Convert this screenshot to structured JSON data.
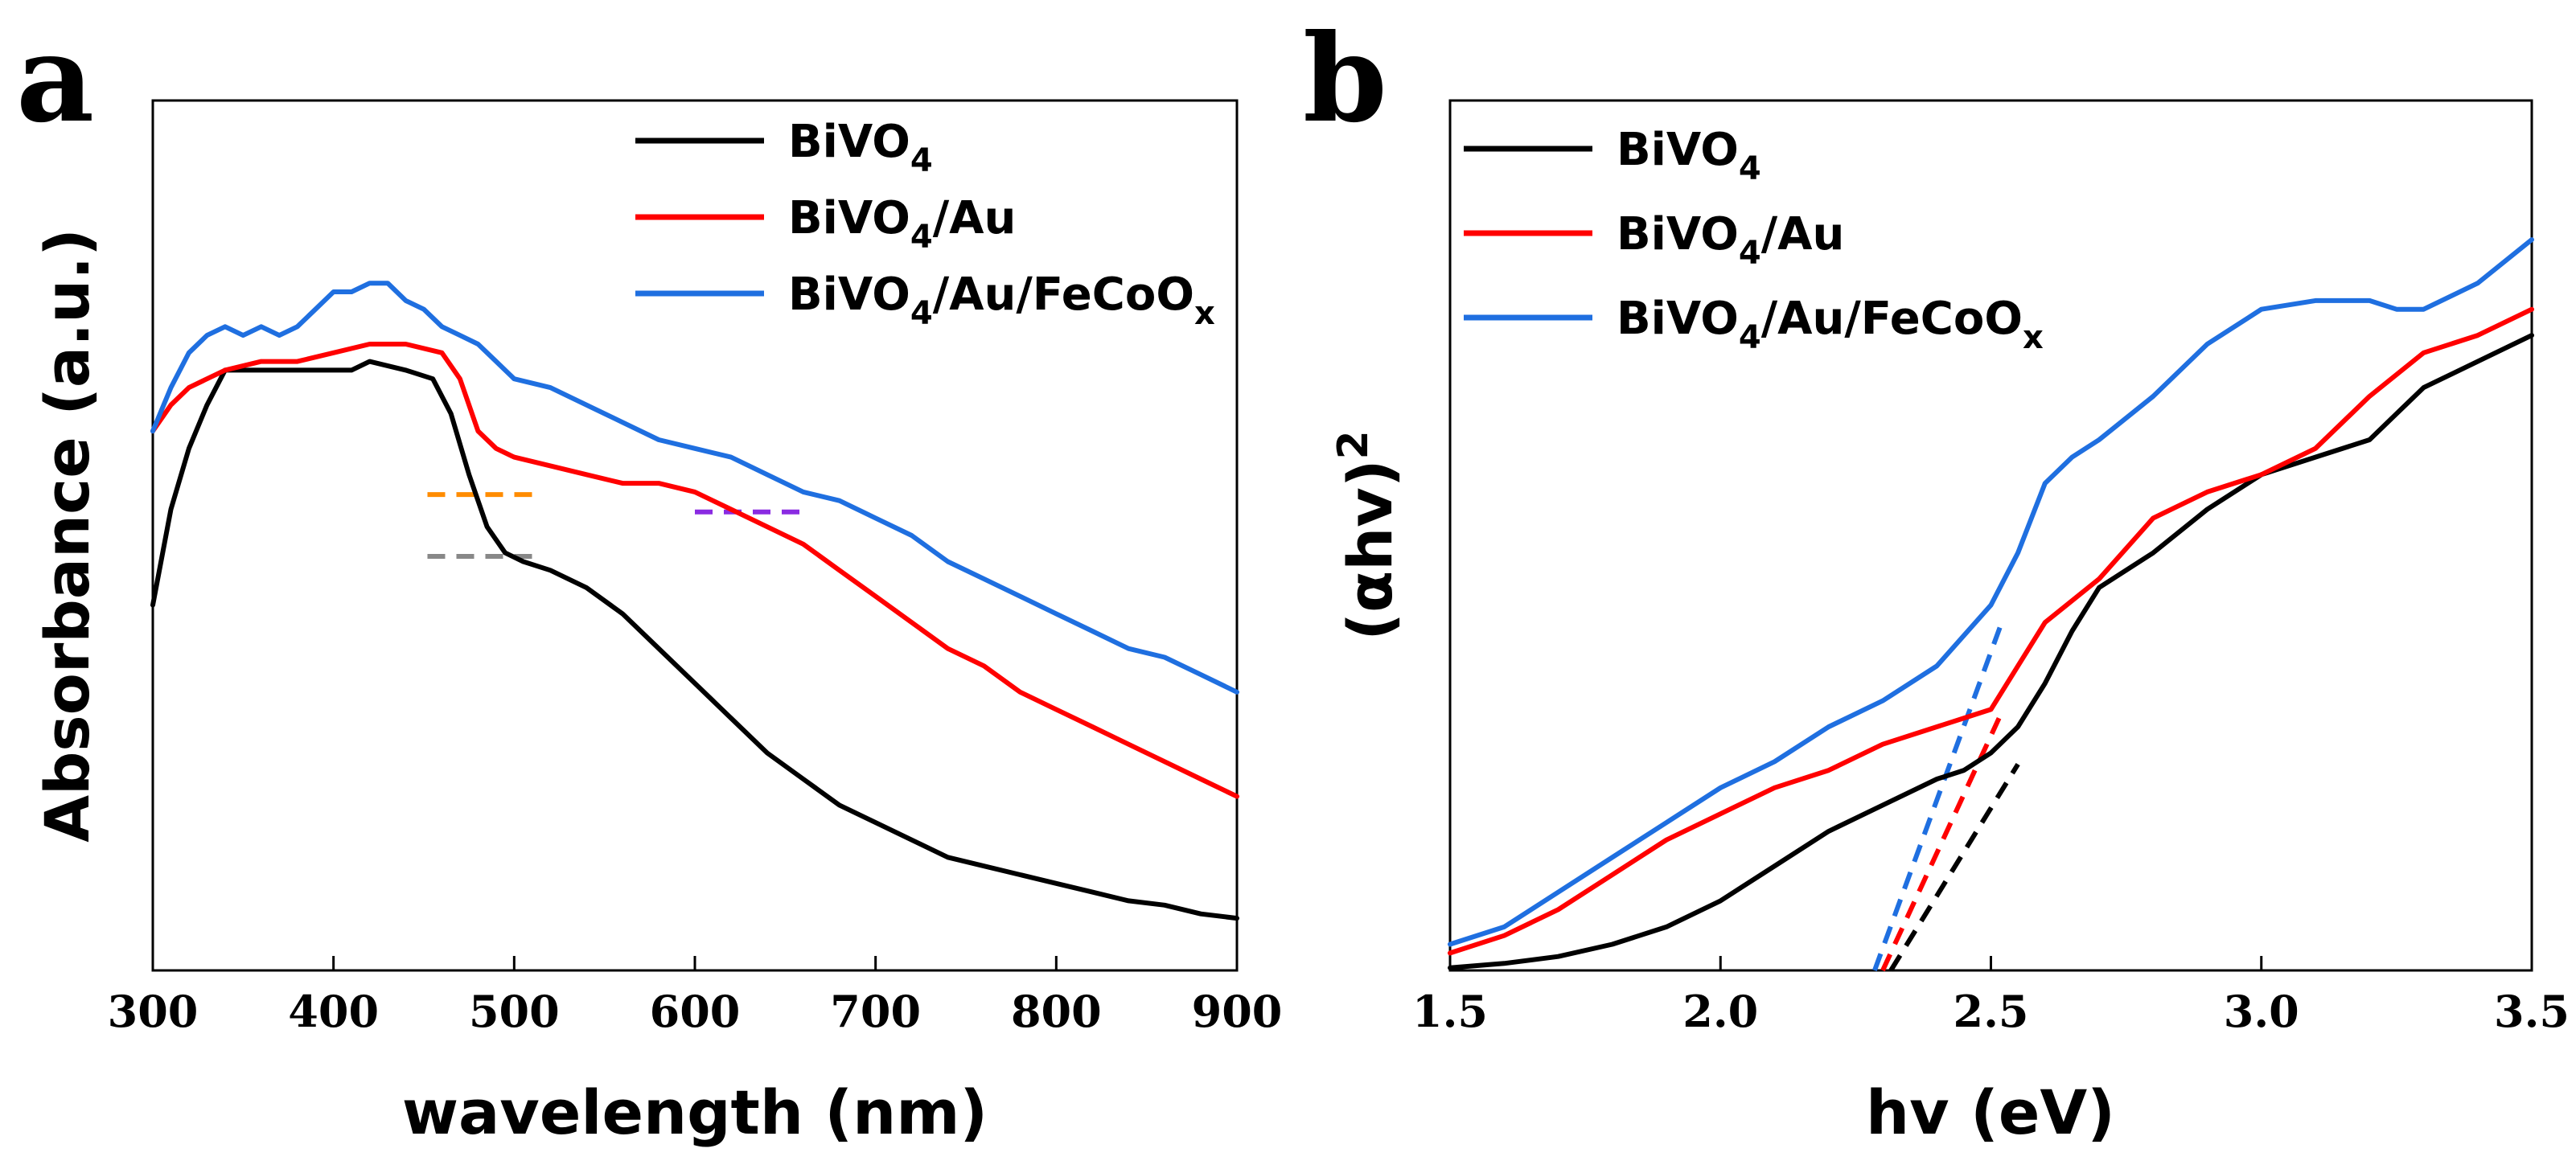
{
  "chart_data": [
    {
      "type": "line",
      "panel_label": "a",
      "xlabel": "wavelength (nm)",
      "ylabel": "Absorbance (a.u.)",
      "xlim": [
        300,
        900
      ],
      "ylim": [
        0,
        1
      ],
      "xticks": [
        300,
        400,
        500,
        600,
        700,
        800,
        900
      ],
      "y_ticks_shown": false,
      "legend_position": "top-right",
      "series": [
        {
          "name": "BiVO",
          "sub": "4",
          "suffix": "",
          "suffix_sub": "",
          "color": "#000000",
          "x": [
            300,
            310,
            320,
            330,
            340,
            350,
            370,
            390,
            400,
            410,
            420,
            440,
            455,
            465,
            475,
            485,
            495,
            505,
            520,
            540,
            560,
            580,
            600,
            620,
            640,
            660,
            680,
            700,
            720,
            740,
            760,
            780,
            800,
            820,
            840,
            860,
            880,
            900
          ],
          "y": [
            0.42,
            0.53,
            0.6,
            0.65,
            0.69,
            0.69,
            0.69,
            0.69,
            0.69,
            0.69,
            0.7,
            0.69,
            0.68,
            0.64,
            0.57,
            0.51,
            0.48,
            0.47,
            0.46,
            0.44,
            0.41,
            0.37,
            0.33,
            0.29,
            0.25,
            0.22,
            0.19,
            0.17,
            0.15,
            0.13,
            0.12,
            0.11,
            0.1,
            0.09,
            0.08,
            0.075,
            0.065,
            0.06
          ]
        },
        {
          "name": "BiVO",
          "sub": "4",
          "suffix": "/Au",
          "suffix_sub": "",
          "color": "#ff0000",
          "x": [
            300,
            310,
            320,
            330,
            340,
            360,
            380,
            400,
            420,
            440,
            460,
            470,
            480,
            490,
            500,
            520,
            540,
            560,
            580,
            600,
            620,
            640,
            660,
            680,
            700,
            720,
            740,
            760,
            780,
            800,
            820,
            840,
            860,
            880,
            900
          ],
          "y": [
            0.62,
            0.65,
            0.67,
            0.68,
            0.69,
            0.7,
            0.7,
            0.71,
            0.72,
            0.72,
            0.71,
            0.68,
            0.62,
            0.6,
            0.59,
            0.58,
            0.57,
            0.56,
            0.56,
            0.55,
            0.53,
            0.51,
            0.49,
            0.46,
            0.43,
            0.4,
            0.37,
            0.35,
            0.32,
            0.3,
            0.28,
            0.26,
            0.24,
            0.22,
            0.2
          ]
        },
        {
          "name": "BiVO",
          "sub": "4",
          "suffix": "/Au/FeCoO",
          "suffix_sub": "x",
          "color": "#1f6fe0",
          "x": [
            300,
            310,
            320,
            330,
            340,
            350,
            360,
            370,
            380,
            390,
            400,
            410,
            420,
            430,
            440,
            450,
            460,
            470,
            480,
            490,
            500,
            520,
            540,
            560,
            580,
            600,
            620,
            640,
            660,
            680,
            700,
            720,
            740,
            760,
            780,
            800,
            820,
            840,
            860,
            880,
            900
          ],
          "y": [
            0.62,
            0.67,
            0.71,
            0.73,
            0.74,
            0.73,
            0.74,
            0.73,
            0.74,
            0.76,
            0.78,
            0.78,
            0.79,
            0.79,
            0.77,
            0.76,
            0.74,
            0.73,
            0.72,
            0.7,
            0.68,
            0.67,
            0.65,
            0.63,
            0.61,
            0.6,
            0.59,
            0.57,
            0.55,
            0.54,
            0.52,
            0.5,
            0.47,
            0.45,
            0.43,
            0.41,
            0.39,
            0.37,
            0.36,
            0.34,
            0.32
          ]
        }
      ],
      "guides": [
        {
          "x": [
            452,
            510
          ],
          "y": [
            0.547,
            0.547
          ],
          "color": "#ff8c00"
        },
        {
          "x": [
            452,
            510
          ],
          "y": [
            0.476,
            0.476
          ],
          "color": "#888888"
        },
        {
          "x": [
            600,
            660
          ],
          "y": [
            0.527,
            0.527
          ],
          "color": "#8a2be2"
        }
      ]
    },
    {
      "type": "line",
      "panel_label": "b",
      "xlabel": "hv (eV)",
      "ylabel": "(αhv)",
      "ylabel_sup": "2",
      "xlim": [
        1.5,
        3.5
      ],
      "ylim": [
        0,
        1
      ],
      "xticks": [
        "1.5",
        "2.0",
        "2.5",
        "3.0",
        "3.5"
      ],
      "y_ticks_shown": false,
      "legend_position": "top-left",
      "series": [
        {
          "name": "BiVO",
          "sub": "4",
          "suffix": "",
          "suffix_sub": "",
          "color": "#000000",
          "x": [
            1.5,
            1.6,
            1.7,
            1.8,
            1.9,
            2.0,
            2.1,
            2.2,
            2.3,
            2.4,
            2.45,
            2.5,
            2.55,
            2.6,
            2.65,
            2.7,
            2.8,
            2.9,
            3.0,
            3.1,
            3.2,
            3.25,
            3.3,
            3.4,
            3.5
          ],
          "y": [
            0.003,
            0.008,
            0.016,
            0.03,
            0.05,
            0.08,
            0.12,
            0.16,
            0.19,
            0.22,
            0.23,
            0.25,
            0.28,
            0.33,
            0.39,
            0.44,
            0.48,
            0.53,
            0.57,
            0.59,
            0.61,
            0.64,
            0.67,
            0.7,
            0.73
          ]
        },
        {
          "name": "BiVO",
          "sub": "4",
          "suffix": "/Au",
          "suffix_sub": "",
          "color": "#ff0000",
          "x": [
            1.5,
            1.6,
            1.7,
            1.8,
            1.9,
            2.0,
            2.1,
            2.2,
            2.3,
            2.4,
            2.5,
            2.55,
            2.6,
            2.7,
            2.8,
            2.9,
            3.0,
            3.1,
            3.2,
            3.3,
            3.4,
            3.5
          ],
          "y": [
            0.02,
            0.04,
            0.07,
            0.11,
            0.15,
            0.18,
            0.21,
            0.23,
            0.26,
            0.28,
            0.3,
            0.35,
            0.4,
            0.45,
            0.52,
            0.55,
            0.57,
            0.6,
            0.66,
            0.71,
            0.73,
            0.76
          ]
        },
        {
          "name": "BiVO",
          "sub": "4",
          "suffix": "/Au/FeCoO",
          "suffix_sub": "x",
          "color": "#1f6fe0",
          "x": [
            1.5,
            1.6,
            1.7,
            1.8,
            1.9,
            2.0,
            2.1,
            2.2,
            2.3,
            2.4,
            2.5,
            2.55,
            2.6,
            2.65,
            2.7,
            2.8,
            2.9,
            3.0,
            3.1,
            3.2,
            3.25,
            3.3,
            3.4,
            3.5
          ],
          "y": [
            0.03,
            0.05,
            0.09,
            0.13,
            0.17,
            0.21,
            0.24,
            0.28,
            0.31,
            0.35,
            0.42,
            0.48,
            0.56,
            0.59,
            0.61,
            0.66,
            0.72,
            0.76,
            0.77,
            0.77,
            0.76,
            0.76,
            0.79,
            0.84
          ]
        }
      ],
      "guides": [
        {
          "x": [
            2.315,
            2.55
          ],
          "y": [
            0.0,
            0.237
          ],
          "color": "#000000"
        },
        {
          "x": [
            2.3,
            2.515
          ],
          "y": [
            0.0,
            0.29
          ],
          "color": "#ff0000"
        },
        {
          "x": [
            2.285,
            2.52
          ],
          "y": [
            0.0,
            0.4
          ],
          "color": "#1f6fe0"
        }
      ]
    }
  ]
}
